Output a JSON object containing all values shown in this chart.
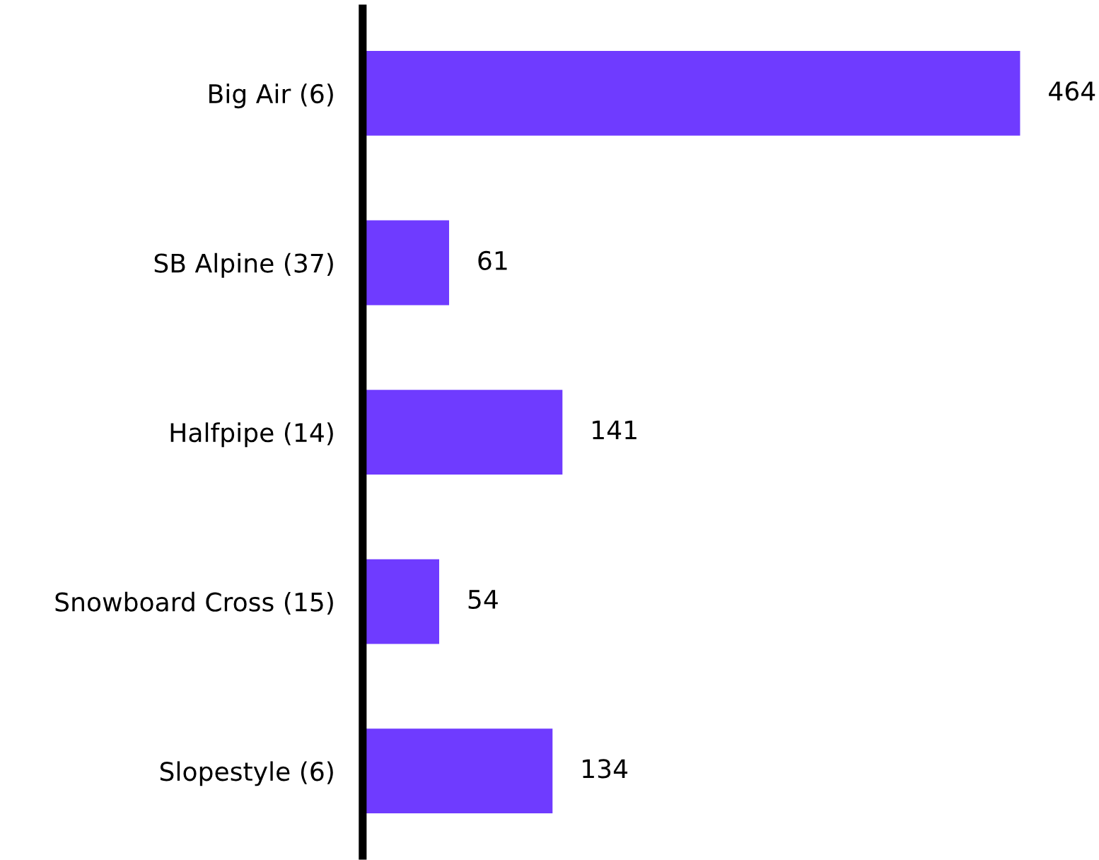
{
  "chart_data": {
    "type": "bar",
    "orientation": "horizontal",
    "categories": [
      "Big Air (6)",
      "SB Alpine (37)",
      "Halfpipe (14)",
      "Snowboard Cross (15)",
      "Slopestyle (6)"
    ],
    "values": [
      464,
      61,
      141,
      54,
      134
    ],
    "color": "#6f3bff",
    "data_labels": true,
    "grid": false,
    "legend": false
  }
}
